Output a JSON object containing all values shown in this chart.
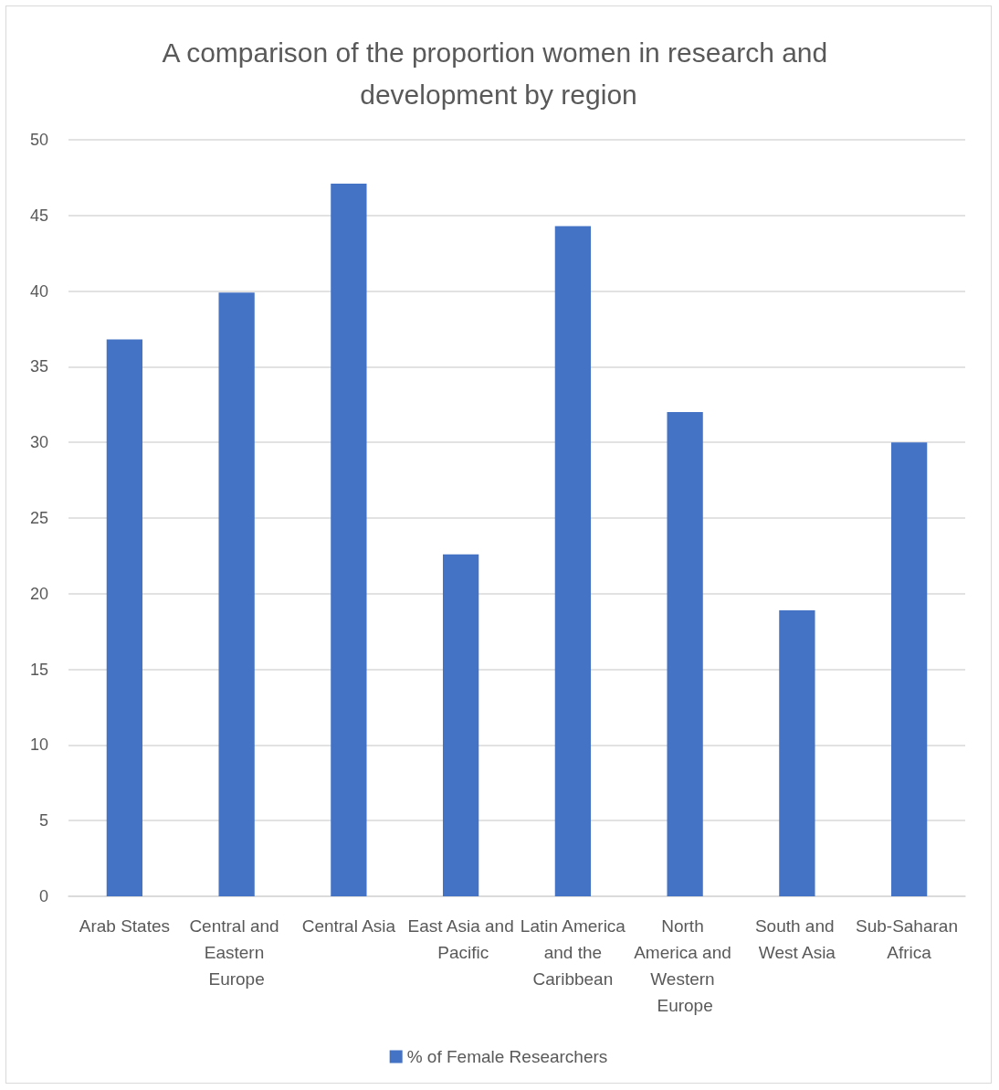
{
  "chart_data": {
    "type": "bar",
    "title": "A comparison of the proportion women in research and development by region",
    "categories": [
      "Arab States",
      "Central and Eastern Europe",
      "Central Asia",
      "East Asia and Pacific",
      "Latin America and the Caribbean",
      "North America and Western Europe",
      "South and West Asia",
      "Sub-Saharan Africa"
    ],
    "series": [
      {
        "name": "% of Female Researchers",
        "color": "#4472c4",
        "values": [
          36.8,
          39.9,
          47.1,
          22.6,
          44.3,
          32.0,
          18.9,
          30.0
        ]
      }
    ],
    "ylim": [
      0,
      50
    ],
    "yticks": [
      0,
      5,
      10,
      15,
      20,
      25,
      30,
      35,
      40,
      45,
      50
    ],
    "grid": "y",
    "legend": "bottom"
  }
}
